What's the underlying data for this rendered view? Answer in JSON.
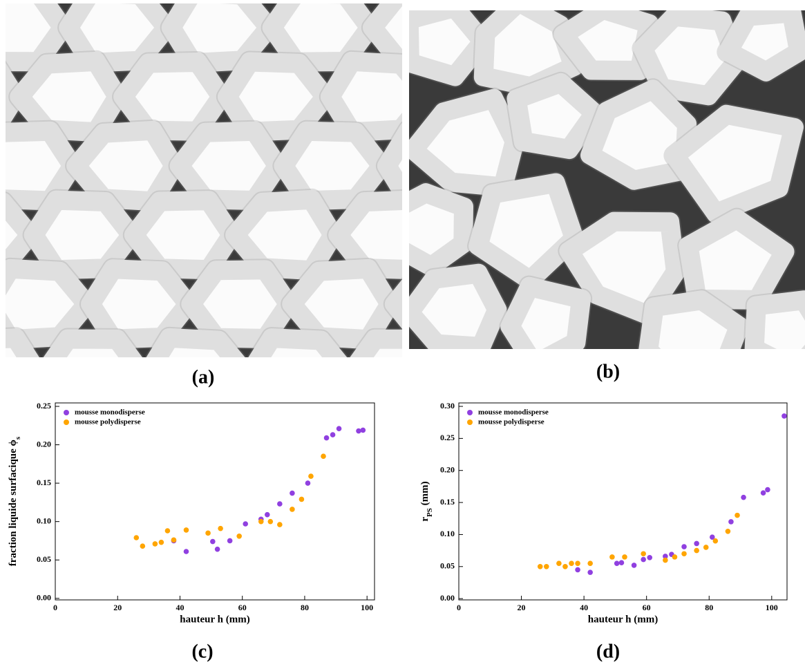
{
  "panels": [
    "(a)",
    "(b)"
  ],
  "chart_data": [
    {
      "type": "scatter",
      "label": "(c)",
      "xlabel": "hauteur h (mm)",
      "ylabel": {
        "text": "fraction liquide surfacique ϕ",
        "sub": "s"
      },
      "xlim": [
        0,
        102.4
      ],
      "ylim": [
        -0.002,
        0.2545
      ],
      "xticks": [
        0,
        20,
        40,
        60,
        80,
        100
      ],
      "yticks": [
        {
          "value": 0,
          "label": "0.00"
        },
        {
          "value": 0.05,
          "label": "0.05"
        },
        {
          "value": 0.1,
          "label": "0.10"
        },
        {
          "value": 0.15,
          "label": "0.15"
        },
        {
          "value": 0.2,
          "label": "0.20"
        },
        {
          "value": 0.25,
          "label": "0.25"
        }
      ],
      "legend": "upper left",
      "series": [
        {
          "name": "mousse monodisperse",
          "color": "#9040e0",
          "x": [
            38,
            42,
            50.5,
            52,
            56,
            61,
            66,
            68,
            72,
            76,
            81,
            87,
            89,
            91,
            97.3,
            98.7
          ],
          "values": [
            0.075,
            0.061,
            0.074,
            0.064,
            0.075,
            0.097,
            0.103,
            0.109,
            0.123,
            0.137,
            0.15,
            0.209,
            0.213,
            0.221,
            0.218,
            0.219
          ]
        },
        {
          "name": "mousse polydisperse",
          "color": "#ffa500",
          "x": [
            26,
            28,
            32,
            34,
            36,
            38,
            42,
            49,
            53,
            59,
            66,
            69,
            72,
            76,
            79,
            82,
            86
          ],
          "values": [
            0.079,
            0.068,
            0.071,
            0.073,
            0.088,
            0.076,
            0.089,
            0.085,
            0.091,
            0.081,
            0.1,
            0.1,
            0.096,
            0.116,
            0.129,
            0.159,
            0.185
          ]
        }
      ]
    },
    {
      "type": "scatter",
      "label": "(d)",
      "xlabel": "hauteur h (mm)",
      "ylabel": {
        "text": "r",
        "sub": "PS",
        "after": " (mm)"
      },
      "xlim": [
        0,
        104.9
      ],
      "ylim": [
        -0.002,
        0.3054
      ],
      "xticks": [
        0,
        20,
        40,
        60,
        80,
        100
      ],
      "yticks": [
        {
          "value": 0,
          "label": "0.00"
        },
        {
          "value": 0.05,
          "label": "0.05"
        },
        {
          "value": 0.1,
          "label": "0.10"
        },
        {
          "value": 0.15,
          "label": "0.15"
        },
        {
          "value": 0.2,
          "label": "0.20"
        },
        {
          "value": 0.25,
          "label": "0.25"
        },
        {
          "value": 0.3,
          "label": "0.30"
        }
      ],
      "legend": "upper left",
      "series": [
        {
          "name": "mousse monodisperse",
          "color": "#9040e0",
          "x": [
            38,
            42,
            50.5,
            52,
            56,
            59,
            61,
            66,
            68,
            72,
            76,
            81,
            87,
            91,
            97.3,
            98.7,
            104
          ],
          "values": [
            0.045,
            0.041,
            0.055,
            0.056,
            0.052,
            0.061,
            0.064,
            0.066,
            0.069,
            0.081,
            0.086,
            0.096,
            0.12,
            0.158,
            0.165,
            0.17,
            0.285
          ]
        },
        {
          "name": "mousse polydisperse",
          "color": "#ffa500",
          "x": [
            26,
            28,
            32,
            34,
            36,
            38,
            42,
            49,
            53,
            59,
            66,
            69,
            72,
            76,
            79,
            82,
            86,
            89
          ],
          "values": [
            0.05,
            0.05,
            0.055,
            0.05,
            0.055,
            0.055,
            0.055,
            0.065,
            0.065,
            0.07,
            0.06,
            0.065,
            0.07,
            0.075,
            0.08,
            0.09,
            0.105,
            0.13
          ]
        }
      ]
    }
  ]
}
